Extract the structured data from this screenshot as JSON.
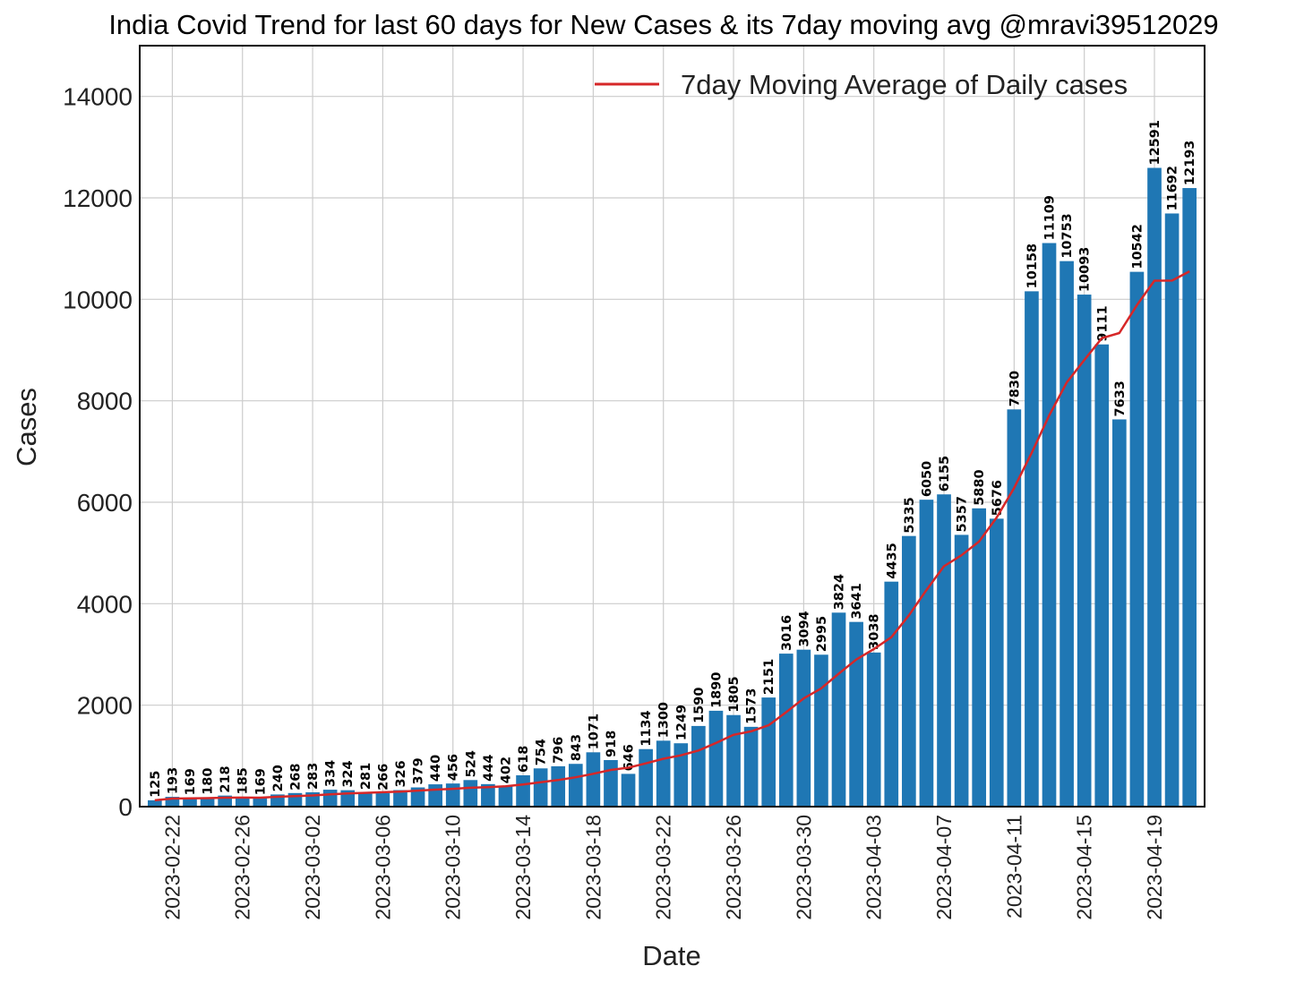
{
  "chart_data": {
    "type": "bar",
    "title": "India Covid Trend for last 60 days for New Cases & its 7day moving avg @mravi39512029",
    "xlabel": "Date",
    "ylabel": "Cases",
    "ylim": [
      0,
      15000
    ],
    "yticks": [
      "0",
      "2000",
      "4000",
      "6000",
      "8000",
      "10000",
      "12000",
      "14000"
    ],
    "xticks": [
      "2023-02-22",
      "2023-02-26",
      "2023-03-02",
      "2023-03-06",
      "2023-03-10",
      "2023-03-14",
      "2023-03-18",
      "2023-03-22",
      "2023-03-26",
      "2023-03-30",
      "2023-04-03",
      "2023-04-07",
      "2023-04-11",
      "2023-04-15",
      "2023-04-19"
    ],
    "grid": true,
    "legend_position": "top-right",
    "bar_color": "#1f77b4",
    "line_color": "#d62728",
    "dates": [
      "2023-02-21",
      "2023-02-22",
      "2023-02-23",
      "2023-02-24",
      "2023-02-25",
      "2023-02-26",
      "2023-02-27",
      "2023-02-28",
      "2023-03-01",
      "2023-03-02",
      "2023-03-03",
      "2023-03-04",
      "2023-03-05",
      "2023-03-06",
      "2023-03-07",
      "2023-03-08",
      "2023-03-09",
      "2023-03-10",
      "2023-03-11",
      "2023-03-12",
      "2023-03-13",
      "2023-03-14",
      "2023-03-15",
      "2023-03-16",
      "2023-03-17",
      "2023-03-18",
      "2023-03-19",
      "2023-03-20",
      "2023-03-21",
      "2023-03-22",
      "2023-03-23",
      "2023-03-24",
      "2023-03-25",
      "2023-03-26",
      "2023-03-27",
      "2023-03-28",
      "2023-03-29",
      "2023-03-30",
      "2023-03-31",
      "2023-04-01",
      "2023-04-02",
      "2023-04-03",
      "2023-04-04",
      "2023-04-05",
      "2023-04-06",
      "2023-04-07",
      "2023-04-08",
      "2023-04-09",
      "2023-04-10",
      "2023-04-11",
      "2023-04-12",
      "2023-04-13",
      "2023-04-14",
      "2023-04-15",
      "2023-04-16",
      "2023-04-17",
      "2023-04-18",
      "2023-04-19",
      "2023-04-20",
      "2023-04-21"
    ],
    "series": [
      {
        "name": "",
        "type": "bar",
        "values": [
          125,
          193,
          169,
          180,
          218,
          185,
          169,
          240,
          268,
          283,
          334,
          324,
          281,
          266,
          326,
          379,
          440,
          456,
          524,
          444,
          402,
          618,
          754,
          796,
          843,
          1071,
          918,
          646,
          1134,
          1300,
          1249,
          1590,
          1890,
          1805,
          1573,
          2151,
          3016,
          3094,
          2995,
          3824,
          3641,
          3038,
          4435,
          5335,
          6050,
          6155,
          5357,
          5880,
          5676,
          7830,
          10158,
          11109,
          10753,
          10093,
          9111,
          7633,
          10542,
          12591,
          11692,
          12193
        ]
      },
      {
        "name": "7day Moving Average of Daily cases",
        "type": "line",
        "values": [
          125,
          159,
          162,
          167,
          177,
          178,
          177,
          194,
          209,
          221,
          242,
          260,
          271,
          285,
          297,
          316,
          335,
          351,
          373,
          384,
          400,
          437,
          480,
          525,
          579,
          647,
          723,
          768,
          852,
          945,
          1012,
          1107,
          1254,
          1416,
          1485,
          1604,
          1862,
          2133,
          2331,
          2621,
          2899,
          3106,
          3340,
          3771,
          4268,
          4738,
          4955,
          5226,
          5698,
          6280,
          6972,
          7712,
          8362,
          8805,
          9235,
          9335,
          9884,
          10368,
          10369,
          10551
        ]
      }
    ]
  }
}
